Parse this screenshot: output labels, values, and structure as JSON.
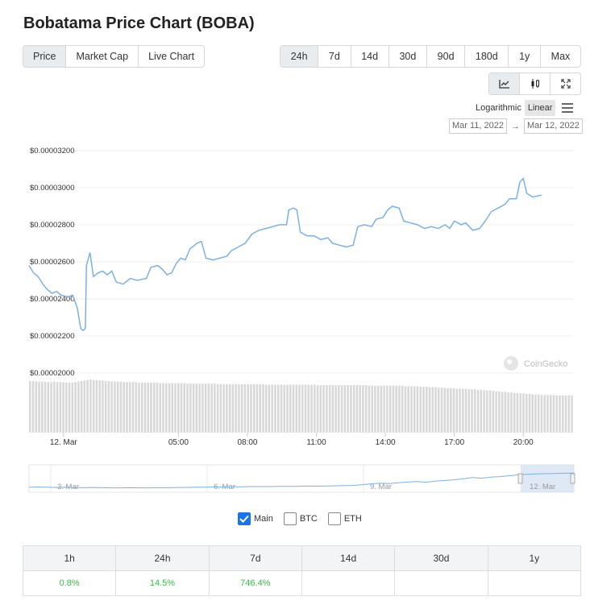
{
  "title": "Bobatama Price Chart (BOBA)",
  "view_tabs": [
    {
      "label": "Price",
      "active": true
    },
    {
      "label": "Market Cap",
      "active": false
    },
    {
      "label": "Live Chart",
      "active": false
    }
  ],
  "range_tabs": [
    {
      "label": "24h",
      "active": true
    },
    {
      "label": "7d",
      "active": false
    },
    {
      "label": "14d",
      "active": false
    },
    {
      "label": "30d",
      "active": false
    },
    {
      "label": "90d",
      "active": false
    },
    {
      "label": "180d",
      "active": false
    },
    {
      "label": "1y",
      "active": false
    },
    {
      "label": "Max",
      "active": false
    }
  ],
  "tools": [
    {
      "icon": "line-chart-icon",
      "active": true
    },
    {
      "icon": "candlestick-icon",
      "active": false
    },
    {
      "icon": "fullscreen-icon",
      "active": false
    }
  ],
  "scale": {
    "logarithmic": "Logarithmic",
    "linear": "Linear",
    "active": "Linear"
  },
  "date_range": {
    "from": "Mar 11, 2022",
    "arrow": "→",
    "to": "Mar 12, 2022"
  },
  "watermark": "CoinGecko",
  "series_toggles": [
    {
      "label": "Main",
      "checked": true
    },
    {
      "label": "BTC",
      "checked": false
    },
    {
      "label": "ETH",
      "checked": false
    }
  ],
  "performance": {
    "headers": [
      "1h",
      "24h",
      "7d",
      "14d",
      "30d",
      "1y"
    ],
    "values": [
      "0.8%",
      "14.5%",
      "746.4%",
      "",
      "",
      ""
    ]
  },
  "colors": {
    "line": "#7db0e0",
    "volume": "#d8d8d8",
    "positive": "#3db74d"
  },
  "chart_data": {
    "type": "line",
    "title": "",
    "xlabel": "",
    "ylabel": "",
    "ylim": [
      2e-05,
      3.2e-05
    ],
    "y_ticks": [
      "$0.00003200",
      "$0.00003000",
      "$0.00002800",
      "$0.00002600",
      "$0.00002400",
      "$0.00002200",
      "$0.00002000"
    ],
    "y_tick_values": [
      3.2e-05,
      3e-05,
      2.8e-05,
      2.6e-05,
      2.4e-05,
      2.2e-05,
      2e-05
    ],
    "x_ticks": [
      {
        "label": "12. Mar",
        "t": 1.0
      },
      {
        "label": "05:00",
        "t": 6.0
      },
      {
        "label": "08:00",
        "t": 9.0
      },
      {
        "label": "11:00",
        "t": 12.0
      },
      {
        "label": "14:00",
        "t": 15.0
      },
      {
        "label": "17:00",
        "t": 18.0
      },
      {
        "label": "20:00",
        "t": 21.0
      }
    ],
    "x_range": [
      -0.5,
      23.2
    ],
    "grid": true,
    "series": [
      {
        "values": [
          [
            -0.5,
            2.58e-05
          ],
          [
            -0.3,
            2.54e-05
          ],
          [
            -0.1,
            2.52e-05
          ],
          [
            0.1,
            2.48e-05
          ],
          [
            0.3,
            2.45e-05
          ],
          [
            0.5,
            2.43e-05
          ],
          [
            0.7,
            2.44e-05
          ],
          [
            0.9,
            2.42e-05
          ],
          [
            1.2,
            2.41e-05
          ],
          [
            1.4,
            2.42e-05
          ],
          [
            1.6,
            2.35e-05
          ],
          [
            1.75,
            2.24e-05
          ],
          [
            1.85,
            2.23e-05
          ],
          [
            1.95,
            2.24e-05
          ],
          [
            2.0,
            2.58e-05
          ],
          [
            2.15,
            2.65e-05
          ],
          [
            2.3,
            2.52e-05
          ],
          [
            2.5,
            2.54e-05
          ],
          [
            2.7,
            2.55e-05
          ],
          [
            2.9,
            2.53e-05
          ],
          [
            3.1,
            2.55e-05
          ],
          [
            3.3,
            2.49e-05
          ],
          [
            3.6,
            2.48e-05
          ],
          [
            3.9,
            2.51e-05
          ],
          [
            4.2,
            2.5e-05
          ],
          [
            4.6,
            2.51e-05
          ],
          [
            4.8,
            2.57e-05
          ],
          [
            5.1,
            2.58e-05
          ],
          [
            5.3,
            2.56e-05
          ],
          [
            5.5,
            2.53e-05
          ],
          [
            5.7,
            2.54e-05
          ],
          [
            5.9,
            2.59e-05
          ],
          [
            6.1,
            2.62e-05
          ],
          [
            6.3,
            2.61e-05
          ],
          [
            6.5,
            2.67e-05
          ],
          [
            6.8,
            2.7e-05
          ],
          [
            7.0,
            2.71e-05
          ],
          [
            7.2,
            2.62e-05
          ],
          [
            7.5,
            2.61e-05
          ],
          [
            7.8,
            2.62e-05
          ],
          [
            8.1,
            2.63e-05
          ],
          [
            8.3,
            2.66e-05
          ],
          [
            8.6,
            2.68e-05
          ],
          [
            8.9,
            2.7e-05
          ],
          [
            9.2,
            2.75e-05
          ],
          [
            9.5,
            2.77e-05
          ],
          [
            9.8,
            2.78e-05
          ],
          [
            10.1,
            2.79e-05
          ],
          [
            10.4,
            2.8e-05
          ],
          [
            10.7,
            2.8e-05
          ],
          [
            10.8,
            2.88e-05
          ],
          [
            11.0,
            2.89e-05
          ],
          [
            11.15,
            2.88e-05
          ],
          [
            11.3,
            2.76e-05
          ],
          [
            11.6,
            2.74e-05
          ],
          [
            11.9,
            2.74e-05
          ],
          [
            12.2,
            2.72e-05
          ],
          [
            12.5,
            2.73e-05
          ],
          [
            12.7,
            2.7e-05
          ],
          [
            13.0,
            2.69e-05
          ],
          [
            13.3,
            2.68e-05
          ],
          [
            13.6,
            2.69e-05
          ],
          [
            13.8,
            2.79e-05
          ],
          [
            14.1,
            2.8e-05
          ],
          [
            14.4,
            2.79e-05
          ],
          [
            14.6,
            2.83e-05
          ],
          [
            14.9,
            2.84e-05
          ],
          [
            15.1,
            2.88e-05
          ],
          [
            15.3,
            2.9e-05
          ],
          [
            15.6,
            2.89e-05
          ],
          [
            15.8,
            2.82e-05
          ],
          [
            16.1,
            2.81e-05
          ],
          [
            16.4,
            2.8e-05
          ],
          [
            16.7,
            2.78e-05
          ],
          [
            17.0,
            2.79e-05
          ],
          [
            17.3,
            2.78e-05
          ],
          [
            17.6,
            2.8e-05
          ],
          [
            17.8,
            2.78e-05
          ],
          [
            18.0,
            2.82e-05
          ],
          [
            18.3,
            2.8e-05
          ],
          [
            18.5,
            2.81e-05
          ],
          [
            18.8,
            2.77e-05
          ],
          [
            19.1,
            2.78e-05
          ],
          [
            19.4,
            2.83e-05
          ],
          [
            19.6,
            2.87e-05
          ],
          [
            19.9,
            2.89e-05
          ],
          [
            20.2,
            2.91e-05
          ],
          [
            20.4,
            2.94e-05
          ],
          [
            20.7,
            2.94e-05
          ],
          [
            20.85,
            3.03e-05
          ],
          [
            21.0,
            3.05e-05
          ],
          [
            21.15,
            2.97e-05
          ],
          [
            21.4,
            2.95e-05
          ],
          [
            21.8,
            2.96e-05
          ]
        ]
      }
    ],
    "volume": [
      1.0,
      1.0,
      0.99,
      0.99,
      0.99,
      0.99,
      0.98,
      0.98,
      0.99,
      0.98,
      0.98,
      0.98,
      0.97,
      0.97,
      0.97,
      0.98,
      0.99,
      1.0,
      1.01,
      1.02,
      1.03,
      1.02,
      1.02,
      1.01,
      1.01,
      1.0,
      1.0,
      0.99,
      0.99,
      0.99,
      0.99,
      0.98,
      0.98,
      0.98,
      0.98,
      0.98,
      0.97,
      0.97,
      0.97,
      0.97,
      0.97,
      0.97,
      0.97,
      0.96,
      0.96,
      0.96,
      0.96,
      0.96,
      0.96,
      0.96,
      0.96,
      0.96,
      0.95,
      0.95,
      0.95,
      0.95,
      0.95,
      0.95,
      0.95,
      0.95,
      0.95,
      0.95,
      0.94,
      0.94,
      0.94,
      0.94,
      0.94,
      0.94,
      0.94,
      0.94,
      0.94,
      0.94,
      0.94,
      0.94,
      0.94,
      0.94,
      0.94,
      0.94,
      0.93,
      0.93,
      0.93,
      0.93,
      0.93,
      0.93,
      0.93,
      0.93,
      0.93,
      0.93,
      0.93,
      0.93,
      0.93,
      0.93,
      0.93,
      0.93,
      0.93,
      0.92,
      0.92,
      0.92,
      0.92,
      0.92,
      0.92,
      0.92,
      0.92,
      0.92,
      0.92,
      0.92,
      0.92,
      0.92,
      0.92,
      0.92,
      0.92,
      0.92,
      0.91,
      0.91,
      0.91,
      0.91,
      0.91,
      0.91,
      0.91,
      0.91,
      0.91,
      0.91,
      0.91,
      0.91,
      0.9,
      0.9,
      0.9,
      0.9,
      0.9,
      0.89,
      0.89,
      0.89,
      0.88,
      0.88,
      0.88,
      0.87,
      0.87,
      0.87,
      0.86,
      0.86,
      0.86,
      0.85,
      0.85,
      0.85,
      0.85,
      0.84,
      0.84,
      0.84,
      0.83,
      0.83,
      0.82,
      0.82,
      0.82,
      0.81,
      0.8,
      0.8,
      0.79,
      0.79,
      0.78,
      0.78,
      0.77,
      0.77,
      0.76,
      0.76,
      0.75,
      0.75,
      0.74,
      0.74,
      0.74,
      0.73,
      0.73,
      0.73,
      0.73,
      0.73,
      0.72,
      0.72,
      0.72,
      0.72,
      0.72,
      0.72
    ],
    "navigator": {
      "labels": [
        "3. Mar",
        "6. Mar",
        "9. Mar",
        "12. Mar"
      ],
      "values": [
        0.15,
        0.16,
        0.15,
        0.14,
        0.15,
        0.14,
        0.13,
        0.14,
        0.13,
        0.12,
        0.12,
        0.13,
        0.12,
        0.12,
        0.13,
        0.13,
        0.14,
        0.14,
        0.15,
        0.15,
        0.16,
        0.16,
        0.17,
        0.17,
        0.18,
        0.18,
        0.18,
        0.19,
        0.19,
        0.19,
        0.2,
        0.2,
        0.2,
        0.21,
        0.22,
        0.23,
        0.26,
        0.3,
        0.33,
        0.31,
        0.35,
        0.38,
        0.4,
        0.37,
        0.42,
        0.45,
        0.48,
        0.52,
        0.58,
        0.55,
        0.6,
        0.62,
        0.66,
        0.7,
        0.72,
        0.74,
        0.75,
        0.76,
        0.77,
        0.78
      ]
    }
  }
}
